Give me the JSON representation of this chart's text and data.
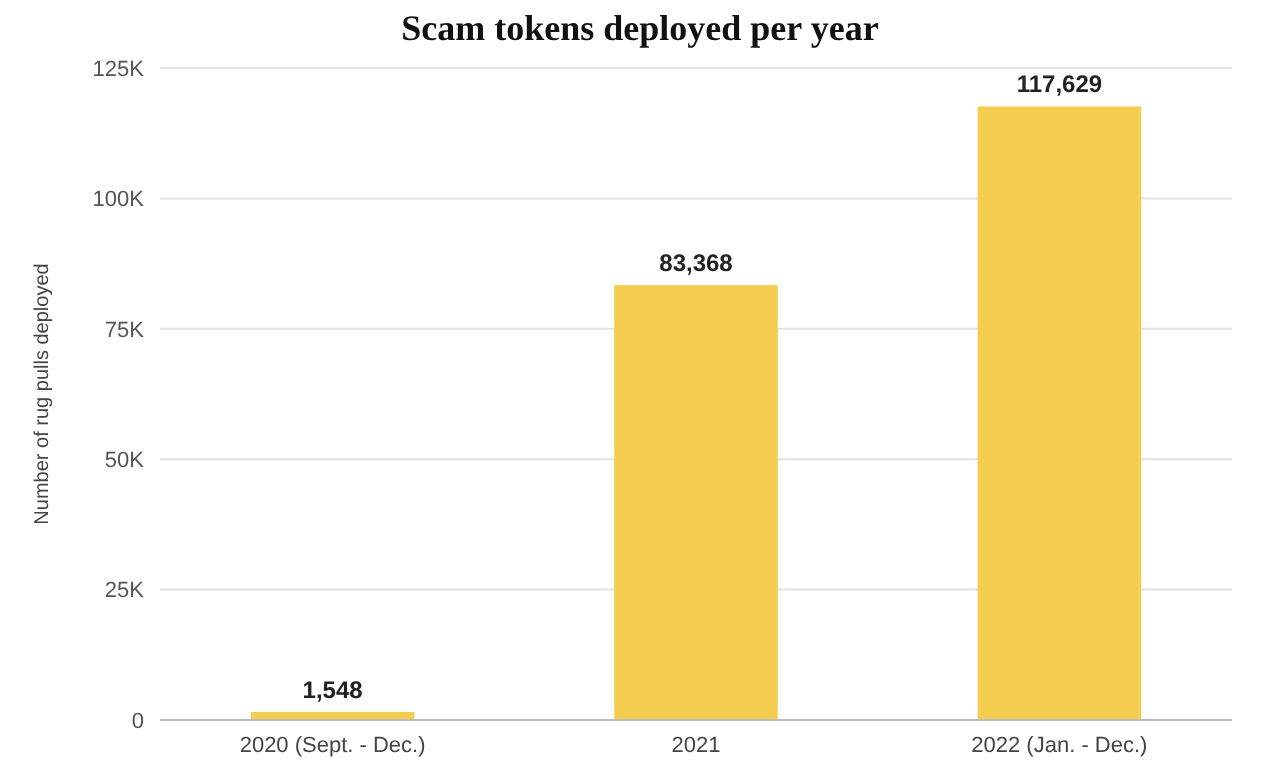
{
  "chart_data": {
    "type": "bar",
    "title": "Scam tokens deployed per year",
    "ylabel": "Number of rug pulls deployed",
    "categories": [
      "2020 (Sept. - Dec.)",
      "2021",
      "2022 (Jan. - Dec.)"
    ],
    "values": [
      1548,
      83368,
      117629
    ],
    "value_labels": [
      "1,548",
      "83,368",
      "117,629"
    ],
    "color": "#f5cd50",
    "ylim": [
      0,
      125000
    ],
    "yticks": [
      {
        "value": 0,
        "label": "0"
      },
      {
        "value": 25000,
        "label": "25K"
      },
      {
        "value": 50000,
        "label": "50K"
      },
      {
        "value": 75000,
        "label": "75K"
      },
      {
        "value": 100000,
        "label": "100K"
      },
      {
        "value": 125000,
        "label": "125K"
      }
    ],
    "grid": true
  }
}
